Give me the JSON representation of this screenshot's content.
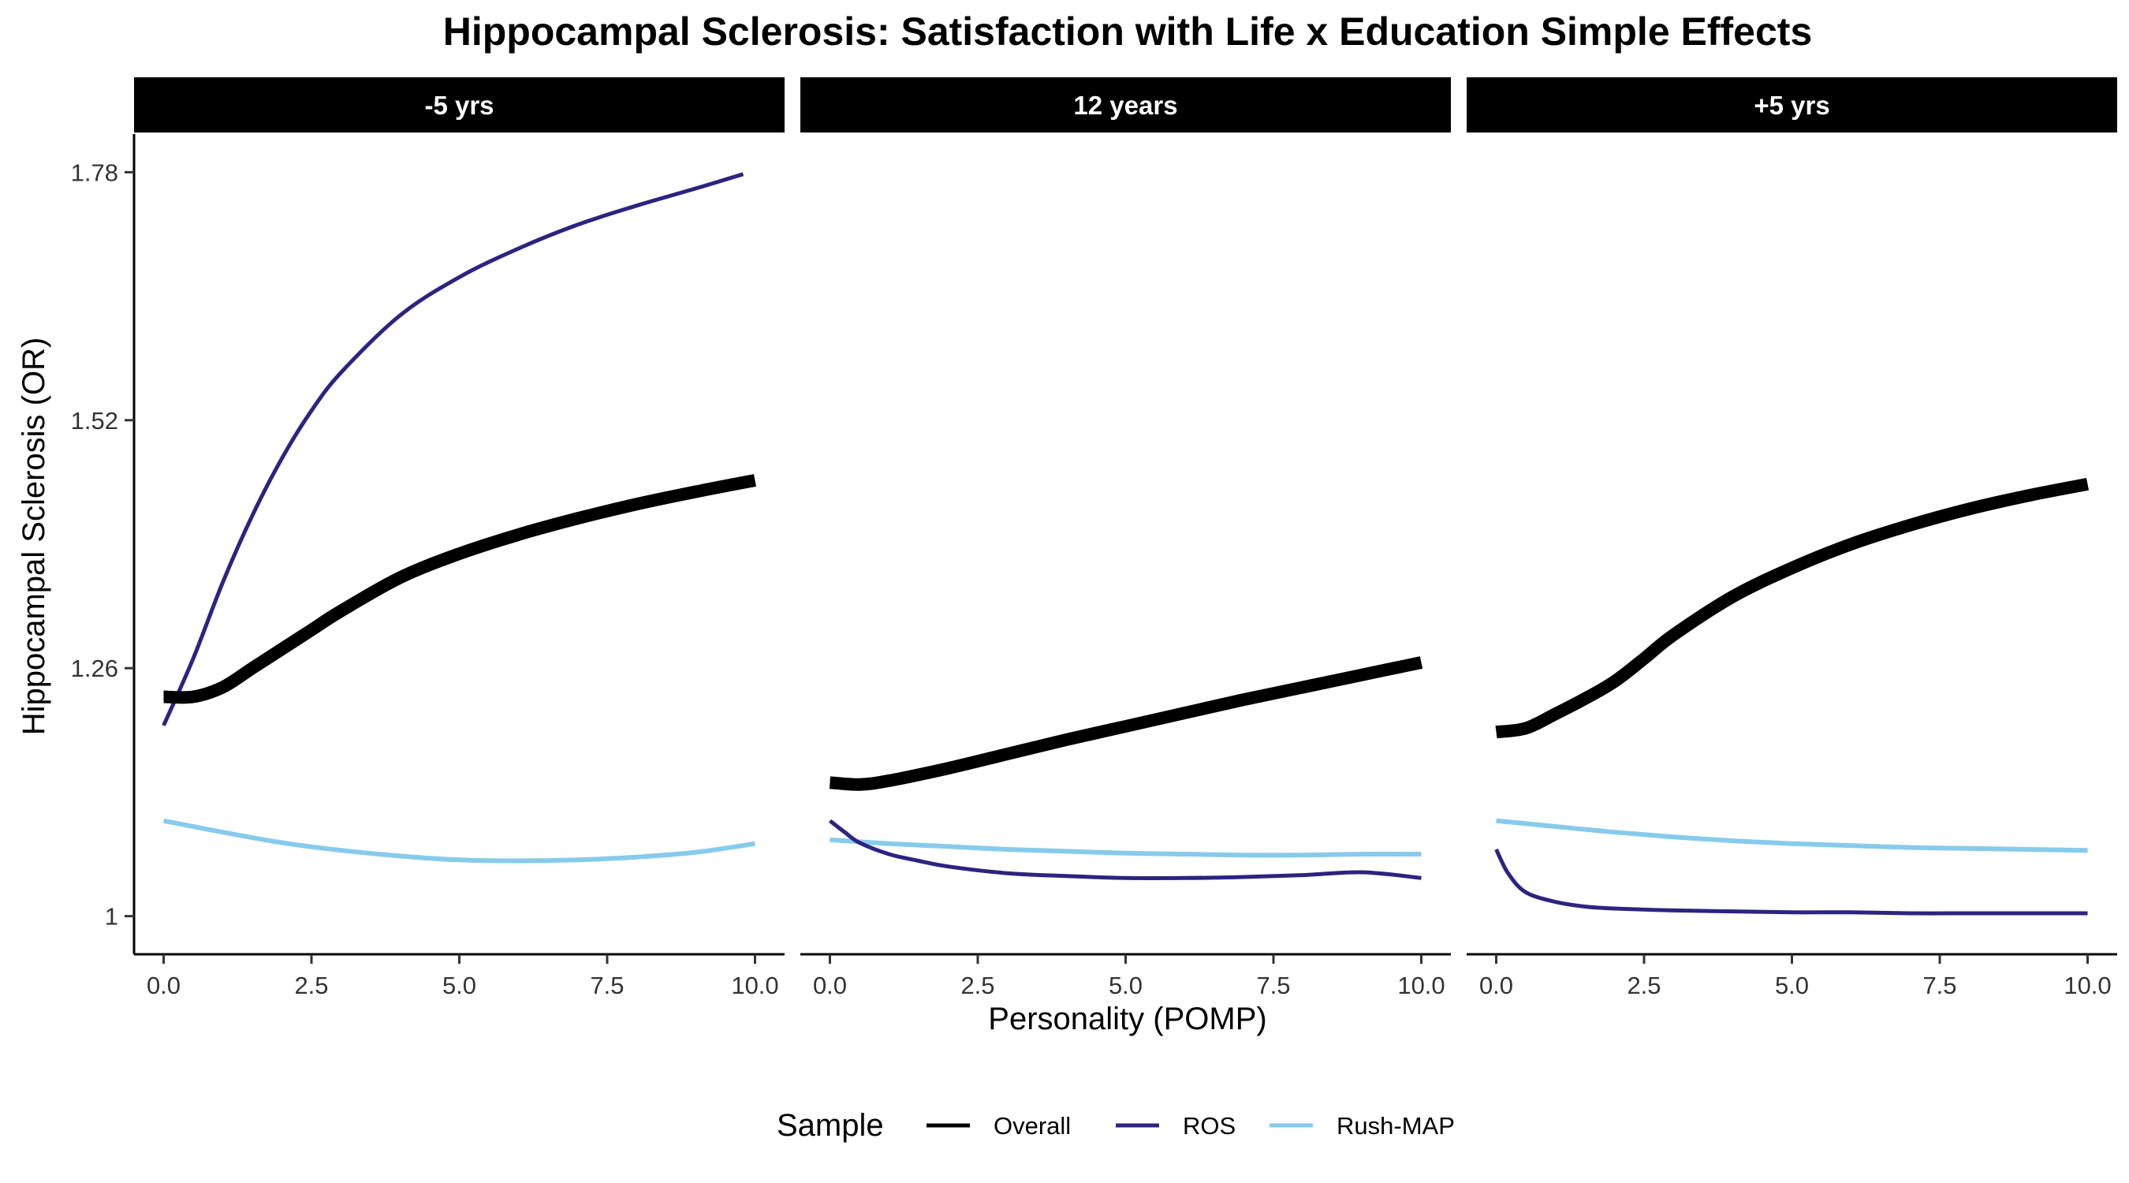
{
  "chart_data": {
    "type": "line",
    "title": "Hippocampal Sclerosis: Satisfaction with Life x Education Simple Effects",
    "xlabel": "Personality (POMP)",
    "ylabel": "Hippocampal Sclerosis (OR)",
    "xlim": [
      -0.5,
      10.5
    ],
    "ylim": [
      0.96,
      1.82
    ],
    "x_ticks": [
      0,
      2.5,
      5,
      7.5,
      10
    ],
    "x_tick_labels": [
      "0.0",
      "2.5",
      "5.0",
      "7.5",
      "10.0"
    ],
    "y_ticks": [
      1,
      1.26,
      1.52,
      1.78
    ],
    "y_tick_labels": [
      "1",
      "1.26",
      "1.52",
      "1.78"
    ],
    "grid": false,
    "legend": {
      "title": "Sample",
      "position": "bottom",
      "entries": [
        {
          "label": "Overall",
          "color": "#000000"
        },
        {
          "label": "ROS",
          "color": "#2d2380"
        },
        {
          "label": "Rush-MAP",
          "color": "#87cbec"
        }
      ]
    },
    "colors": {
      "Overall": "#000000",
      "ROS": "#2d2380",
      "Rush-MAP": "#87cbec"
    },
    "panels": [
      {
        "label": "-5 yrs",
        "series": [
          {
            "name": "Overall",
            "x": [
              0,
              0.5,
              1,
              1.5,
              2,
              2.5,
              3,
              4,
              5,
              6,
              7,
              8,
              9,
              10
            ],
            "y": [
              1.23,
              1.23,
              1.24,
              1.26,
              1.28,
              1.3,
              1.32,
              1.355,
              1.38,
              1.4,
              1.417,
              1.432,
              1.445,
              1.457
            ]
          },
          {
            "name": "ROS",
            "x": [
              0,
              0.5,
              1,
              1.5,
              2,
              2.5,
              3,
              4,
              5,
              6,
              7,
              8,
              9,
              9.8
            ],
            "y": [
              1.2,
              1.27,
              1.35,
              1.42,
              1.48,
              1.53,
              1.57,
              1.63,
              1.67,
              1.7,
              1.725,
              1.745,
              1.763,
              1.778
            ]
          },
          {
            "name": "Rush-MAP",
            "x": [
              0,
              1,
              2,
              3,
              4,
              5,
              6,
              7,
              8,
              9,
              10
            ],
            "y": [
              1.1,
              1.088,
              1.077,
              1.069,
              1.063,
              1.059,
              1.058,
              1.059,
              1.062,
              1.067,
              1.076
            ]
          }
        ]
      },
      {
        "label": "12 years",
        "series": [
          {
            "name": "Overall",
            "x": [
              0,
              0.5,
              1,
              2,
              3,
              4,
              5,
              6,
              7,
              8,
              9,
              10
            ],
            "y": [
              1.14,
              1.138,
              1.142,
              1.155,
              1.17,
              1.185,
              1.199,
              1.213,
              1.227,
              1.24,
              1.253,
              1.266
            ]
          },
          {
            "name": "ROS",
            "x": [
              0,
              0.25,
              0.5,
              1,
              1.5,
              2,
              3,
              4,
              5,
              6,
              7,
              8,
              9,
              10
            ],
            "y": [
              1.1,
              1.088,
              1.077,
              1.065,
              1.058,
              1.052,
              1.045,
              1.042,
              1.04,
              1.04,
              1.041,
              1.043,
              1.046,
              1.04
            ]
          },
          {
            "name": "Rush-MAP",
            "x": [
              0,
              1,
              2,
              3,
              4,
              5,
              6,
              7,
              8,
              9,
              10
            ],
            "y": [
              1.08,
              1.076,
              1.073,
              1.07,
              1.068,
              1.066,
              1.065,
              1.064,
              1.064,
              1.065,
              1.065
            ]
          }
        ]
      },
      {
        "label": "+5 yrs",
        "series": [
          {
            "name": "Overall",
            "x": [
              0,
              0.5,
              1,
              1.5,
              2,
              2.5,
              3,
              4,
              5,
              6,
              7,
              8,
              9,
              10
            ],
            "y": [
              1.193,
              1.197,
              1.212,
              1.228,
              1.246,
              1.27,
              1.295,
              1.335,
              1.365,
              1.39,
              1.41,
              1.427,
              1.441,
              1.453
            ]
          },
          {
            "name": "ROS",
            "x": [
              0,
              0.2,
              0.5,
              1,
              1.5,
              2,
              3,
              4,
              5,
              6,
              7,
              8,
              9,
              10
            ],
            "y": [
              1.07,
              1.045,
              1.025,
              1.015,
              1.01,
              1.008,
              1.006,
              1.005,
              1.004,
              1.004,
              1.003,
              1.003,
              1.003,
              1.003
            ]
          },
          {
            "name": "Rush-MAP",
            "x": [
              0,
              1,
              2,
              3,
              4,
              5,
              6,
              7,
              8,
              9,
              10
            ],
            "y": [
              1.1,
              1.094,
              1.088,
              1.083,
              1.079,
              1.076,
              1.074,
              1.072,
              1.071,
              1.07,
              1.069
            ]
          }
        ]
      }
    ]
  }
}
